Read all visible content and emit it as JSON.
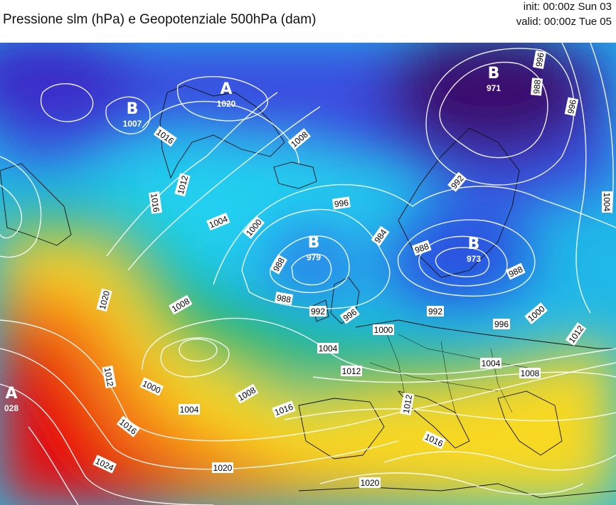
{
  "header": {
    "title": "Pressione slm (hPa) e Geopotenziale 500hPa (dam)",
    "init": "init: 00:00z Sun 03",
    "valid": "valid: 00:00z Tue 05"
  },
  "centers": [
    {
      "letter": "B",
      "value": "1007"
    },
    {
      "letter": "A",
      "value": "1020"
    },
    {
      "letter": "B",
      "value": "971"
    },
    {
      "letter": "B",
      "value": "979"
    },
    {
      "letter": "B",
      "value": "973"
    },
    {
      "letter": "A",
      "value": "028"
    }
  ],
  "isobar_labels": [
    "1016",
    "1012",
    "1016",
    "1008",
    "1004",
    "1000",
    "996",
    "992",
    "988",
    "984",
    "988",
    "988",
    "992",
    "996",
    "1020",
    "1008",
    "1000",
    "1004",
    "1012",
    "1000",
    "1004",
    "1012",
    "1016",
    "1024",
    "1020",
    "1020",
    "1016",
    "1012",
    "1004",
    "1008",
    "1016",
    "1012",
    "1008",
    "1000",
    "996",
    "992",
    "988",
    "996",
    "1004",
    "988",
    "996"
  ],
  "colors": {
    "low_deep": "#3a0a6e",
    "low": "#2a3fd8",
    "mid_low": "#20c8f0",
    "mid": "#22c060",
    "mid_high": "#f8e020",
    "high": "#f05010",
    "high_deep": "#e01010"
  }
}
